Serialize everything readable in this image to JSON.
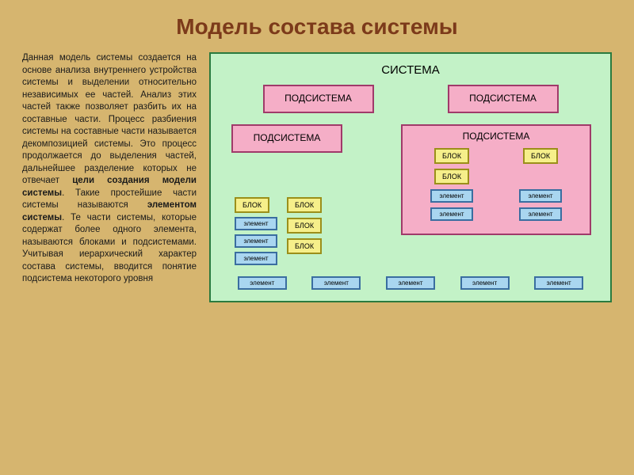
{
  "colors": {
    "slide_bg": "#d6b56f",
    "title_color": "#7c3a1a",
    "text_color": "#1a1a1a",
    "system_bg": "#c3f2c7",
    "system_border": "#2a7a3f",
    "subsystem_bg": "#f5aec7",
    "subsystem_border": "#a03a6a",
    "block_bg": "#f6ef8a",
    "block_border": "#9b8f1a",
    "elem_bg": "#a9d6f0",
    "elem_border": "#3a6ea0"
  },
  "title": "Модель состава системы",
  "description_html": "Данная модель системы создается на основе анализа внутреннего устройства системы и выделении относительно независимых ее частей. Анализ этих частей также позволяет разбить их на составные части. Процесс разбиения системы на составные части называется декомпозицией системы. Это процесс продолжается до выделения частей, дальнейшее разделение которых не отвечает <b>цели создания модели системы</b>. Такие простейшие части системы называются <b>элементом системы</b>. Те части системы, которые содержат более одного элемента, называются блоками и подсистемами. Учитывая иерархический характер состава системы, вводится понятие подсистема некоторого уровня",
  "diagram": {
    "system_label": "СИСТЕМА",
    "subsystem_label": "ПОДСИСТЕМА",
    "block_label": "БЛОК",
    "element_label": "элемент"
  }
}
